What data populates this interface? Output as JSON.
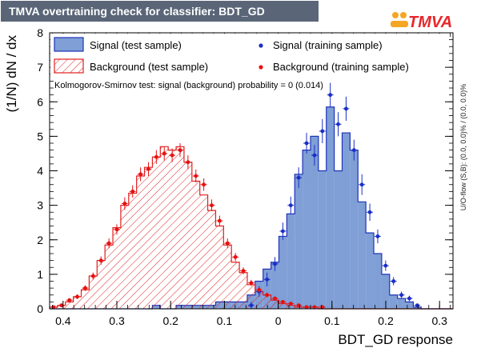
{
  "header": {
    "title": "TMVA overtraining check for classifier: BDT_GD",
    "logo_text": "TMVA"
  },
  "chart_data": {
    "type": "bar",
    "xlabel": "BDT_GD response",
    "ylabel": "(1/N) dN / dx",
    "xlim": [
      -0.425,
      0.325
    ],
    "ylim": [
      0,
      8
    ],
    "bin_edges_start": -0.425,
    "bin_width": 0.0147,
    "x_ticks": [
      "0.4",
      "0.3",
      "0.2",
      "0.1",
      "0",
      "0.1",
      "0.2",
      "0.3"
    ],
    "x_tick_values": [
      -0.4,
      -0.3,
      -0.2,
      -0.1,
      0,
      0.1,
      0.2,
      0.3
    ],
    "y_ticks": [
      "0",
      "1",
      "2",
      "3",
      "4",
      "5",
      "6",
      "7",
      "8"
    ],
    "ks_text": "Kolmogorov-Smirnov test: signal (background) probability =     0 (0.014)",
    "overflow_text": "U/O-flow (S,B): (0.0, 0.0)% / (0.0, 0.0)%",
    "legend": {
      "signal_test": "Signal (test sample)",
      "background_test": "Background (test sample)",
      "signal_train": "Signal (training sample)",
      "background_train": "Background (training sample)"
    },
    "colors": {
      "signal_fill": "#7f9fd6",
      "signal_line": "#1f33b8",
      "background_line": "#e02020",
      "signal_marker": "#1a2fc8",
      "background_marker": "#e81010"
    },
    "series": [
      {
        "name": "Signal (test sample)",
        "values": [
          0,
          0,
          0,
          0,
          0,
          0,
          0,
          0,
          0,
          0,
          0,
          0,
          0,
          0.1,
          0,
          0,
          0.1,
          0.1,
          0.1,
          0.1,
          0.1,
          0.2,
          0.2,
          0.2,
          0.2,
          0.4,
          0.8,
          1.15,
          1.35,
          2.1,
          2.75,
          3.9,
          4.6,
          5.0,
          4.0,
          5.85,
          4.0,
          5.1,
          4.6,
          3.1,
          2.2,
          1.6,
          1.0,
          0.4,
          0.3,
          0.2,
          0.05,
          0,
          0,
          0,
          0
        ]
      },
      {
        "name": "Background (test sample)",
        "values": [
          0.05,
          0.1,
          0.2,
          0.35,
          0.55,
          0.95,
          1.4,
          1.85,
          2.35,
          3.0,
          3.35,
          3.85,
          4.1,
          4.4,
          4.7,
          4.6,
          4.7,
          4.25,
          3.7,
          3.3,
          2.85,
          2.4,
          1.85,
          1.35,
          1.05,
          0.7,
          0.5,
          0.4,
          0.25,
          0.15,
          0.1,
          0.05,
          0.05,
          0.05,
          0,
          0,
          0,
          0,
          0,
          0,
          0,
          0,
          0,
          0,
          0,
          0,
          0,
          0,
          0,
          0,
          0
        ]
      },
      {
        "name": "Signal (training sample)",
        "values": [
          0,
          0,
          0,
          0,
          0,
          0,
          0,
          0,
          0,
          0,
          0,
          0,
          0,
          0,
          0,
          0,
          0,
          0,
          0,
          0,
          0,
          0,
          0,
          0,
          0,
          0.1,
          0.5,
          0.85,
          1.3,
          2.25,
          3.0,
          3.8,
          4.8,
          4.45,
          5.15,
          6.2,
          5.35,
          5.8,
          4.6,
          3.6,
          2.8,
          2.1,
          1.25,
          0.8,
          0.4,
          0.3,
          0.1,
          0,
          0,
          0,
          0
        ],
        "errors": [
          0,
          0,
          0,
          0,
          0,
          0,
          0,
          0,
          0,
          0,
          0,
          0,
          0,
          0,
          0,
          0,
          0,
          0,
          0,
          0,
          0,
          0,
          0,
          0,
          0,
          0.1,
          0.15,
          0.2,
          0.2,
          0.25,
          0.25,
          0.3,
          0.3,
          0.3,
          0.35,
          0.35,
          0.35,
          0.35,
          0.3,
          0.3,
          0.25,
          0.2,
          0.15,
          0.12,
          0.1,
          0.08,
          0.05,
          0,
          0,
          0,
          0
        ]
      },
      {
        "name": "Background (training sample)",
        "values": [
          0.05,
          0.1,
          0.25,
          0.35,
          0.6,
          0.95,
          1.4,
          1.9,
          2.3,
          3.05,
          3.4,
          3.9,
          4.05,
          4.4,
          4.5,
          4.45,
          4.6,
          4.25,
          3.85,
          3.6,
          3.0,
          2.55,
          1.9,
          1.5,
          1.1,
          0.75,
          0.55,
          0.4,
          0.3,
          0.2,
          0.15,
          0.1,
          0.05,
          0.05,
          0.05,
          0,
          0,
          0,
          0,
          0,
          0,
          0,
          0,
          0,
          0,
          0,
          0,
          0,
          0,
          0,
          0
        ],
        "errors": [
          0.03,
          0.04,
          0.06,
          0.07,
          0.08,
          0.1,
          0.12,
          0.14,
          0.15,
          0.18,
          0.18,
          0.2,
          0.2,
          0.2,
          0.2,
          0.2,
          0.2,
          0.2,
          0.19,
          0.18,
          0.17,
          0.15,
          0.14,
          0.12,
          0.1,
          0.09,
          0.08,
          0.07,
          0.06,
          0.05,
          0.04,
          0.03,
          0.03,
          0.03,
          0.03,
          0,
          0,
          0,
          0,
          0,
          0,
          0,
          0,
          0,
          0,
          0,
          0,
          0,
          0,
          0,
          0
        ]
      }
    ]
  }
}
